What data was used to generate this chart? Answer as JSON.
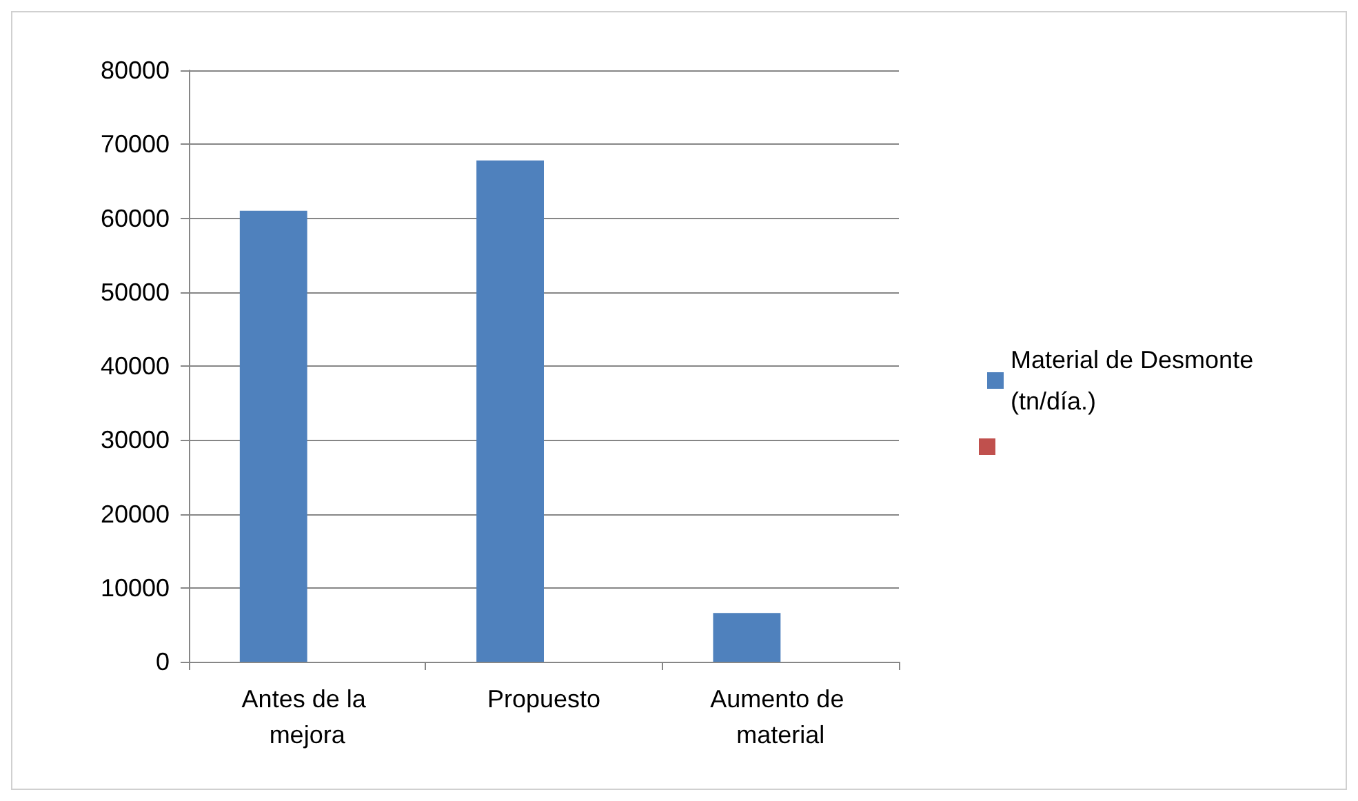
{
  "chart_data": {
    "type": "bar",
    "categories": [
      "Antes de la mejora",
      "Propuesto",
      "Aumento de material"
    ],
    "series": [
      {
        "name": "Material de Desmonte (tn/día.)",
        "color": "#4f81bd",
        "values": [
          61000,
          67800,
          6600
        ]
      },
      {
        "color": "#c0504d",
        "values": [
          null,
          null,
          null
        ]
      }
    ],
    "ylim": [
      0,
      80000
    ],
    "yticks": [
      0,
      10000,
      20000,
      30000,
      40000,
      50000,
      60000,
      70000,
      80000
    ],
    "grid": "y",
    "legend": "right"
  }
}
